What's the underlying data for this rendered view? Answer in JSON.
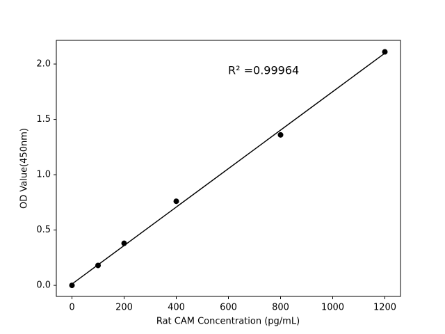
{
  "chart_data": {
    "type": "scatter",
    "xlabel": "Rat CAM Concentration (pg/mL)",
    "ylabel": "OD Value(450nm)",
    "annotation": "R² =0.99964",
    "xlim": [
      -60,
      1260
    ],
    "xticks": [
      0,
      200,
      400,
      600,
      800,
      1000,
      1200
    ],
    "ylim": [
      -0.1,
      2.214
    ],
    "yticks": [
      {
        "value": 0,
        "label": "0.0"
      },
      0.5,
      {
        "value": 1,
        "label": "1.0"
      },
      1.5,
      {
        "value": 2,
        "label": "2.0"
      }
    ],
    "series": [
      {
        "type": "scatter",
        "color": "#000000",
        "x": [
          0,
          100,
          200,
          400,
          800,
          1200
        ],
        "values": [
          0.0,
          0.18,
          0.38,
          0.76,
          1.36,
          2.11
        ]
      },
      {
        "type": "line",
        "color": "#000000",
        "x": [
          0,
          1200
        ],
        "values": [
          0.012,
          2.098
        ]
      }
    ]
  }
}
